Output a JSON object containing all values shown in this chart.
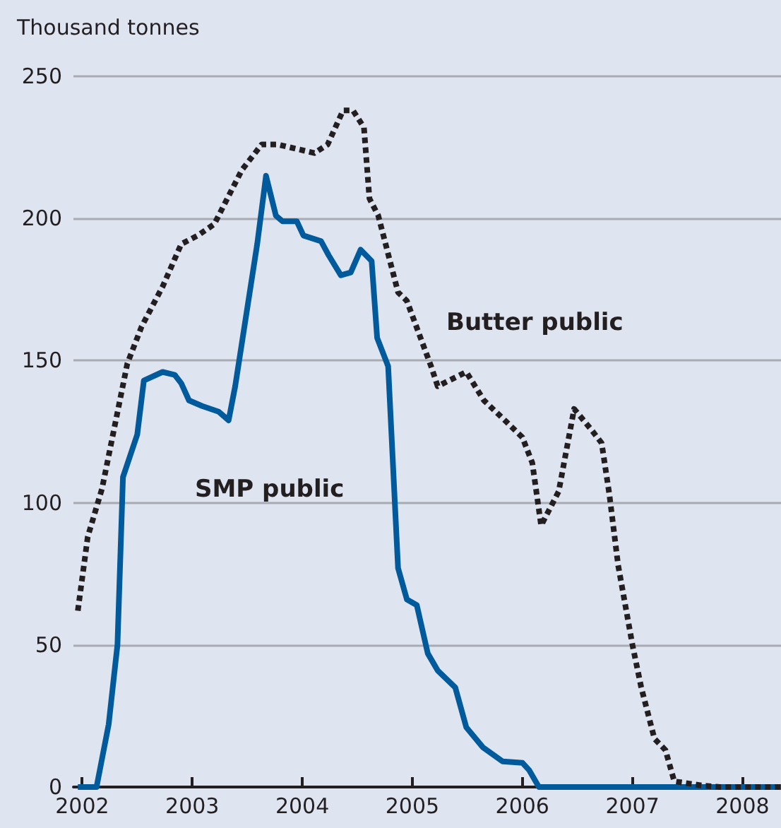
{
  "chart_data": {
    "type": "line",
    "ylabel": "Thousand tonnes",
    "xlim": [
      2001.92,
      2008.35
    ],
    "xticks": [
      2002,
      2003,
      2004,
      2005,
      2006,
      2007,
      2008
    ],
    "ylim": [
      0,
      250
    ],
    "yticks": [
      0,
      50,
      100,
      150,
      200,
      250
    ],
    "grid": "y",
    "legend": false,
    "marker": "none",
    "series": [
      {
        "name": "Butter public",
        "color": "#231f20",
        "line_style": "dashed",
        "x": [
          2001.96,
          2002.05,
          2002.18,
          2002.41,
          2002.54,
          2002.73,
          2002.9,
          2003.05,
          2003.2,
          2003.45,
          2003.63,
          2003.78,
          2004.11,
          2004.23,
          2004.37,
          2004.46,
          2004.56,
          2004.61,
          2004.69,
          2004.87,
          2004.95,
          2005.17,
          2005.23,
          2005.49,
          2005.65,
          2005.84,
          2006.0,
          2006.09,
          2006.17,
          2006.33,
          2006.47,
          2006.62,
          2006.72,
          2006.79,
          2006.87,
          2007.0,
          2007.08,
          2007.2,
          2007.3,
          2007.38,
          2007.64,
          2007.8,
          2008.35
        ],
        "values": [
          62,
          88,
          105,
          149,
          162,
          176,
          191,
          194,
          198,
          217,
          226,
          226,
          223,
          226,
          238,
          238,
          232,
          207,
          201,
          174,
          171,
          148,
          141,
          146,
          136,
          129,
          123,
          114,
          92,
          104,
          133,
          126,
          121,
          103,
          78,
          50,
          35,
          17,
          13,
          2,
          0.5,
          0,
          0
        ]
      },
      {
        "name": "SMP public",
        "color": "#005a9c",
        "line_style": "solid",
        "x": [
          2001.96,
          2002.13,
          2002.24,
          2002.32,
          2002.37,
          2002.5,
          2002.56,
          2002.73,
          2002.84,
          2002.9,
          2002.97,
          2003.09,
          2003.24,
          2003.33,
          2003.39,
          2003.47,
          2003.59,
          2003.67,
          2003.76,
          2003.82,
          2003.95,
          2004.01,
          2004.17,
          2004.24,
          2004.35,
          2004.44,
          2004.53,
          2004.63,
          2004.68,
          2004.78,
          2004.87,
          2004.95,
          2005.04,
          2005.14,
          2005.23,
          2005.39,
          2005.49,
          2005.64,
          2005.82,
          2006.0,
          2006.06,
          2006.15,
          2008.35
        ],
        "values": [
          0,
          0,
          22,
          50,
          109,
          124,
          143,
          146,
          145,
          142,
          136,
          134,
          132,
          129,
          141,
          161,
          191,
          215,
          201,
          199,
          199,
          194,
          192,
          187,
          180,
          181,
          189,
          185,
          158,
          148,
          77,
          66,
          64,
          47,
          41,
          35,
          21,
          14,
          9,
          8.5,
          6,
          0,
          0
        ]
      }
    ]
  }
}
